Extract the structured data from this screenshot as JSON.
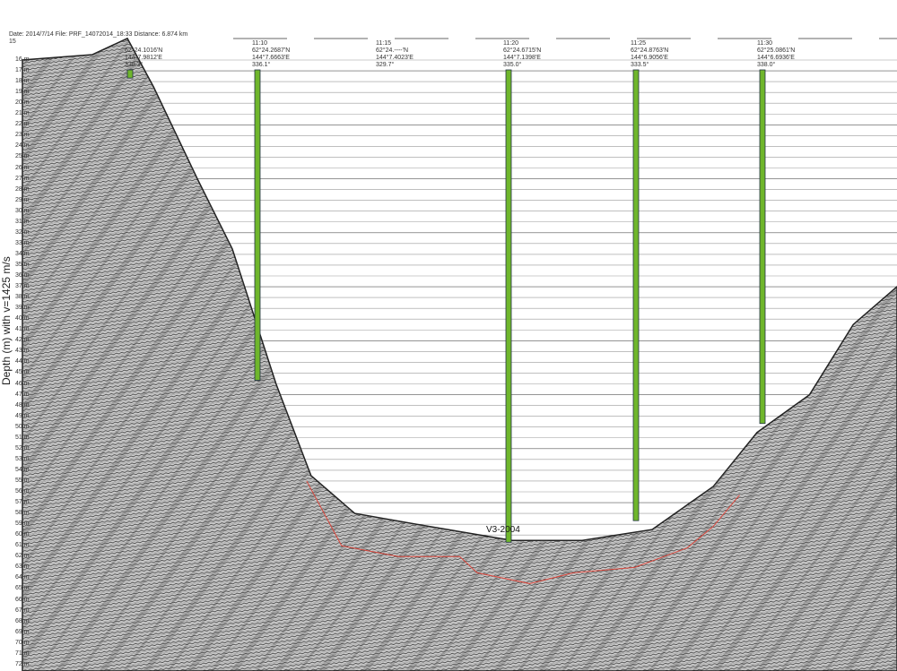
{
  "header": {
    "line1": "Date: 2014/7/14 File: PRF_14072014_18:33  Distance: 6.874 km",
    "line2": "15"
  },
  "chart_data": {
    "type": "line",
    "title": "",
    "ylabel": "Depth (m) with v=1425 m/s",
    "ylim": [
      15,
      73
    ],
    "y_inverted": true,
    "y_ticks": [
      "16 m",
      "17 m",
      "18 m",
      "19 m",
      "20 m",
      "21 m",
      "22 m",
      "23 m",
      "24 m",
      "25 m",
      "26 m",
      "27 m",
      "28 m",
      "29 m",
      "30 m",
      "31 m",
      "32 m",
      "33 m",
      "34 m",
      "35 m",
      "36 m",
      "37 m",
      "38 m",
      "39 m",
      "40 m",
      "41 m",
      "42 m",
      "43 m",
      "44 m",
      "45 m",
      "46 m",
      "47 m",
      "48 m",
      "49 m",
      "50 m",
      "51 m",
      "52 m",
      "53 m",
      "54 m",
      "55 m",
      "56 m",
      "57 m",
      "58 m",
      "59 m",
      "60 m",
      "61 m",
      "62 m",
      "63 m",
      "64 m",
      "65 m",
      "66 m",
      "67 m",
      "68 m",
      "69 m",
      "70 m",
      "71 m",
      "72 m"
    ],
    "grid": true,
    "seabed_depth_m": [
      [
        0,
        16
      ],
      [
        0.08,
        15.5
      ],
      [
        0.12,
        14
      ],
      [
        0.15,
        18.5
      ],
      [
        0.2,
        27
      ],
      [
        0.24,
        33.5
      ],
      [
        0.29,
        46
      ],
      [
        0.33,
        54.5
      ],
      [
        0.38,
        58
      ],
      [
        0.45,
        59
      ],
      [
        0.56,
        60.5
      ],
      [
        0.64,
        60.5
      ],
      [
        0.72,
        59.5
      ],
      [
        0.79,
        55.5
      ],
      [
        0.84,
        50.5
      ],
      [
        0.9,
        47
      ],
      [
        0.95,
        40.5
      ],
      [
        1.0,
        37
      ]
    ],
    "horizon_color": "#d9463c",
    "horizon_depth_m": [
      [
        0.325,
        55
      ],
      [
        0.365,
        61
      ],
      [
        0.43,
        62
      ],
      [
        0.5,
        62
      ],
      [
        0.52,
        63.5
      ],
      [
        0.58,
        64.5
      ],
      [
        0.63,
        63.5
      ],
      [
        0.7,
        63
      ],
      [
        0.76,
        61.2
      ],
      [
        0.79,
        59.2
      ],
      [
        0.82,
        56.3
      ]
    ],
    "marker_color": "#6fb62c",
    "markers": [
      {
        "time": "",
        "lat": "62°24.1016'N",
        "lon": "144°7.9812'E",
        "heading": "338.3°",
        "bottom_depth_m": 18.5
      },
      {
        "time": "11:10",
        "lat": "62°24.2687'N",
        "lon": "144°7.6663'E",
        "heading": "336.1°",
        "bottom_depth_m": 46.5
      },
      {
        "time": "11:15",
        "lat": "62°24.----'N",
        "lon": "144°7.4023'E",
        "heading": "329.7°",
        "bottom_depth_m": null
      },
      {
        "time": "11:20",
        "lat": "62°24.6715'N",
        "lon": "144°7.1398'E",
        "heading": "335.0°",
        "bottom_depth_m": 61.5
      },
      {
        "time": "11:25",
        "lat": "62°24.8763'N",
        "lon": "144°6.9056'E",
        "heading": "333.5°",
        "bottom_depth_m": 59.5
      },
      {
        "time": "11:30",
        "lat": "62°25.0861'N",
        "lon": "144°6.6936'E",
        "heading": "338.0°",
        "bottom_depth_m": 50.5
      }
    ],
    "marker_x": [
      0.145,
      0.287,
      0.425,
      0.567,
      0.709,
      0.85
    ],
    "annotation": "V3-2004"
  }
}
